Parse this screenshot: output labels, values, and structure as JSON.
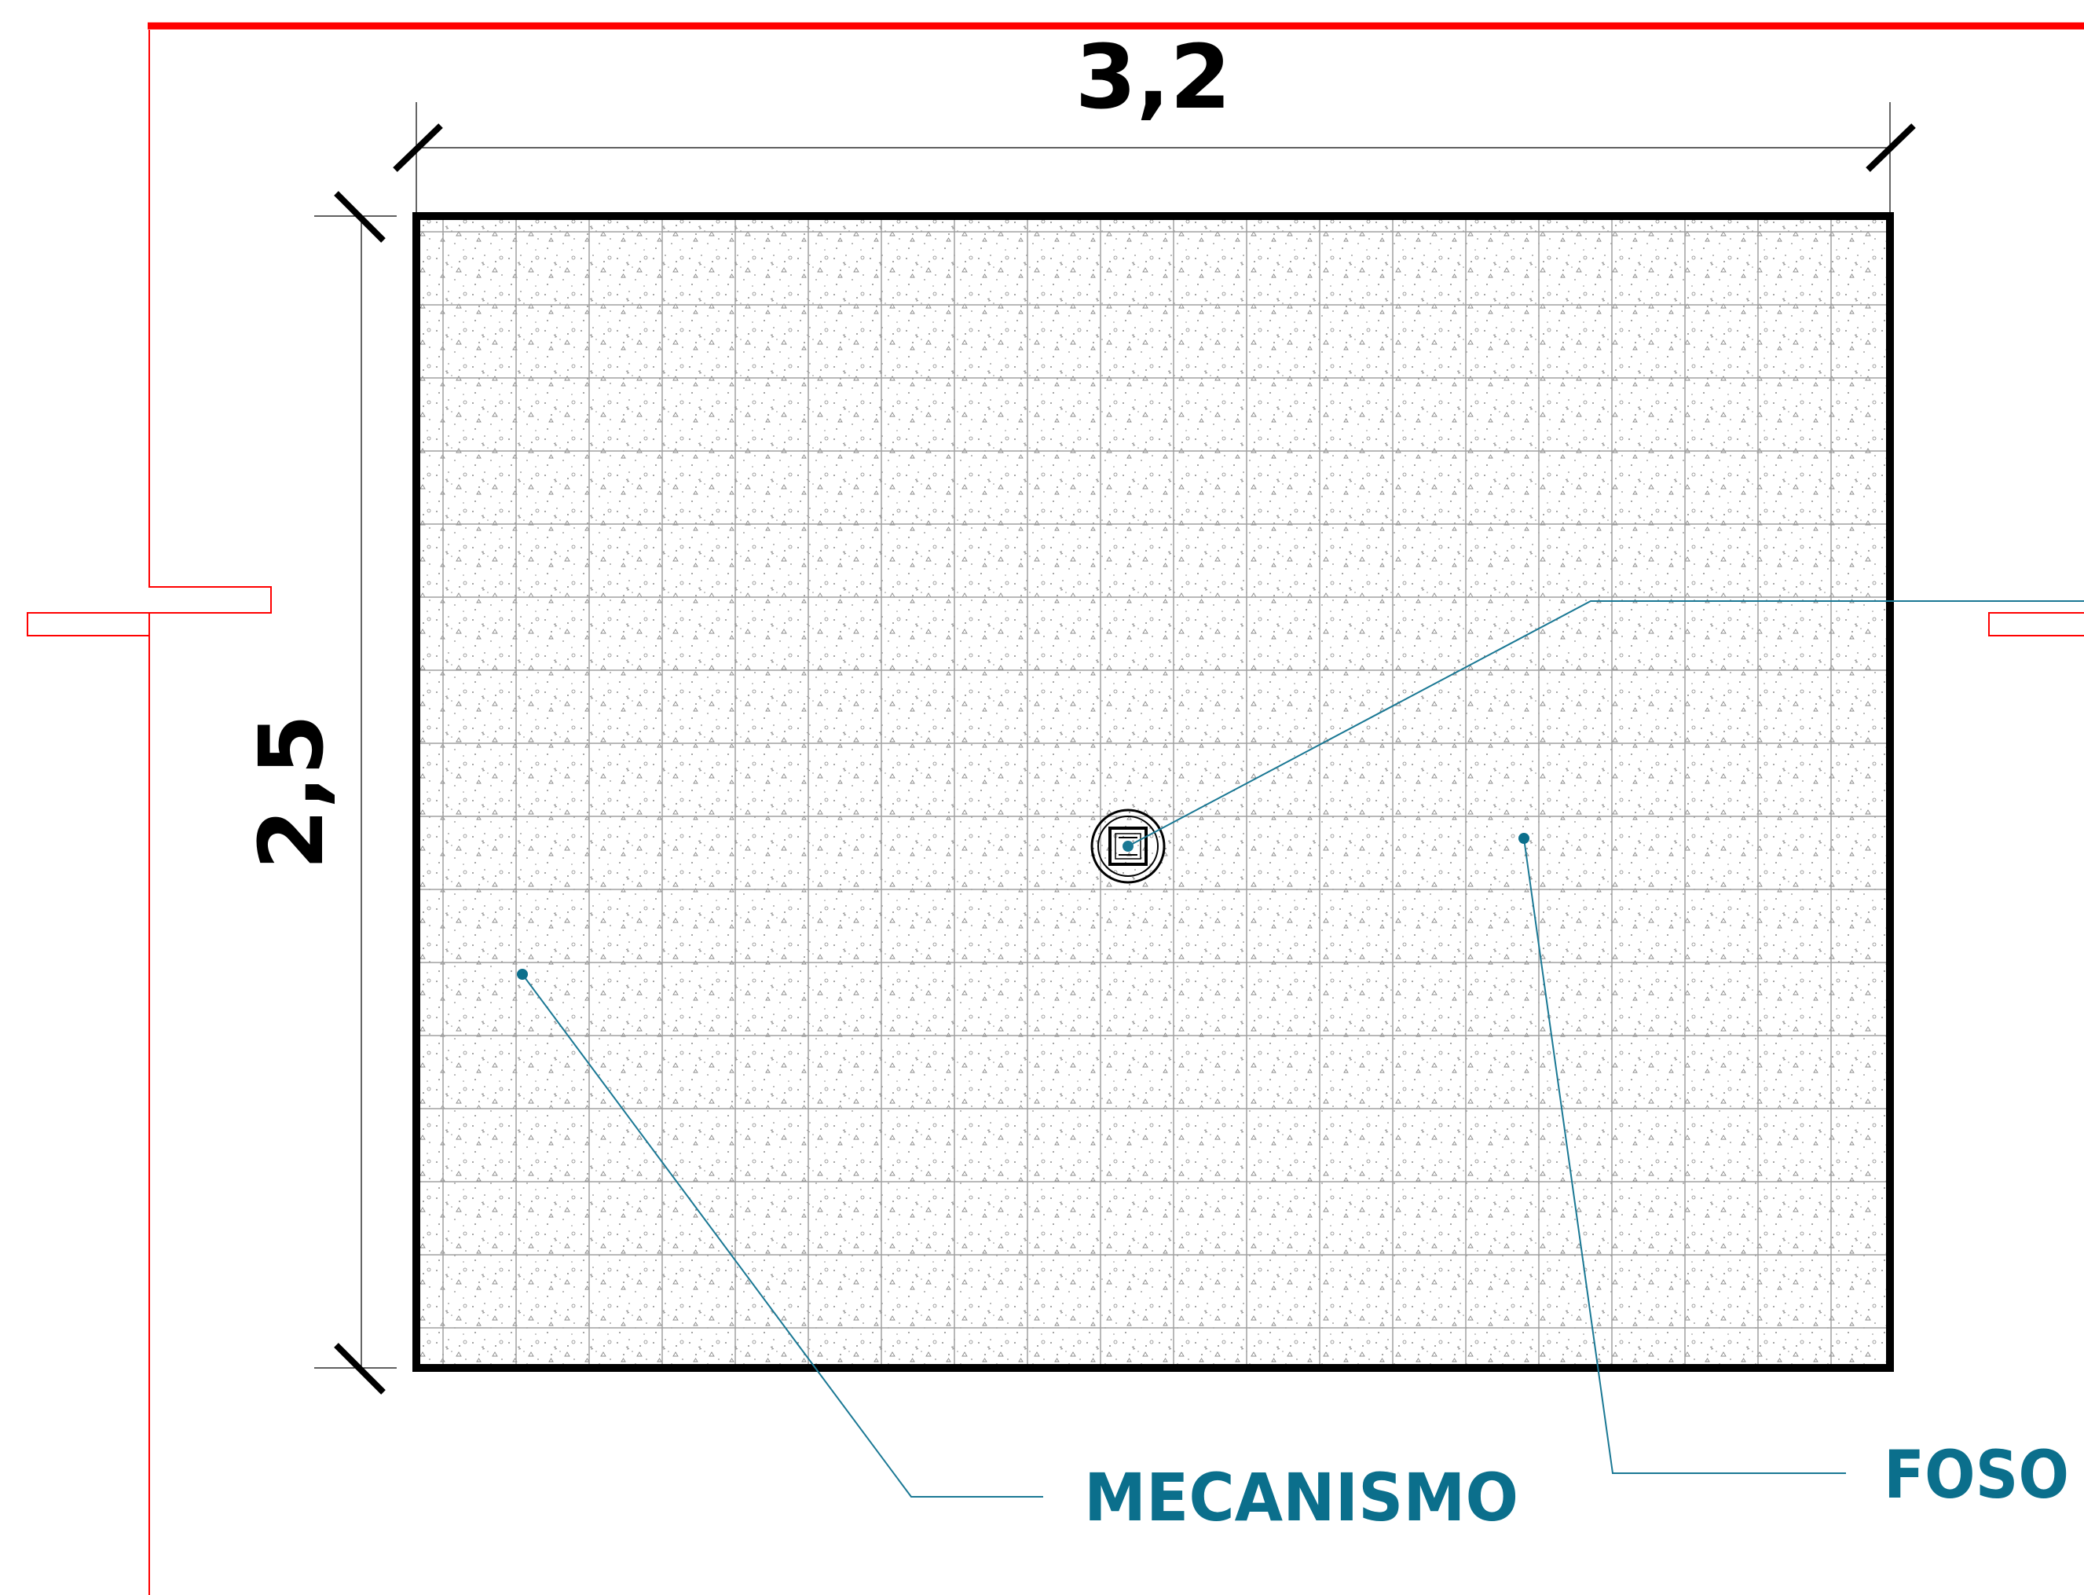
{
  "dimensions": {
    "width_label": "3,2",
    "height_label": "2,5"
  },
  "labels": {
    "mechanism": "MECANISMO",
    "pit": "FOSO"
  },
  "colors": {
    "wall": "#ff0000",
    "outline": "#000000",
    "dimension_line": "#000000",
    "grid": "#a0a0a0",
    "stipple": "#8a8a8a",
    "leader": "#1a7894",
    "label": "#0b6f8c"
  },
  "drain_icon": "floor-drain-icon"
}
